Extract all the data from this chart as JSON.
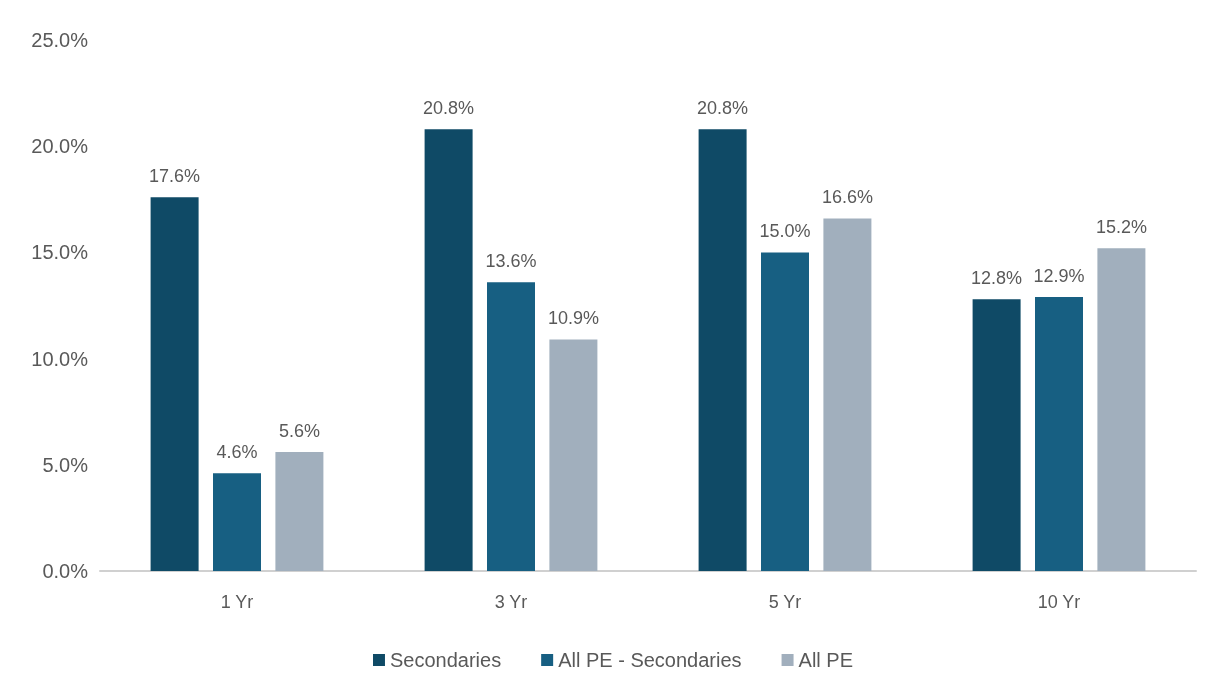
{
  "chart_data": {
    "type": "bar",
    "categories": [
      "1 Yr",
      "3 Yr",
      "5 Yr",
      "10 Yr"
    ],
    "series": [
      {
        "name": "Secondaries",
        "color": "#0f4a66",
        "values": [
          17.6,
          20.8,
          20.8,
          12.8
        ],
        "value_labels": [
          "17.6%",
          "20.8%",
          "20.8%",
          "12.8%"
        ]
      },
      {
        "name": "All PE - Secondaries",
        "color": "#175f82",
        "values": [
          4.6,
          13.6,
          15.0,
          12.9
        ],
        "value_labels": [
          "4.6%",
          "13.6%",
          "15.0%",
          "12.9%"
        ]
      },
      {
        "name": "All PE",
        "color": "#a1afbd",
        "values": [
          5.6,
          10.9,
          16.6,
          15.2
        ],
        "value_labels": [
          "5.6%",
          "10.9%",
          "16.6%",
          "15.2%"
        ]
      }
    ],
    "ylim": [
      0,
      25
    ],
    "yticks": [
      {
        "value": 0,
        "label": "0.0%"
      },
      {
        "value": 5,
        "label": "5.0%"
      },
      {
        "value": 10,
        "label": "10.0%"
      },
      {
        "value": 15,
        "label": "15.0%"
      },
      {
        "value": 20,
        "label": "20.0%"
      },
      {
        "value": 25,
        "label": "25.0%"
      }
    ],
    "grid": false,
    "legend": "bottom"
  }
}
